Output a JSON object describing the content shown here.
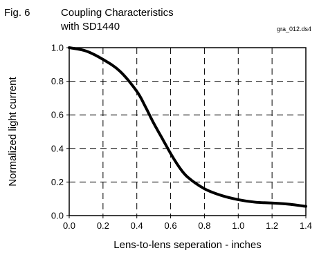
{
  "figure_label": "Fig. 6",
  "file_tag": "gra_012.ds4",
  "chart_data": {
    "type": "line",
    "title": "Coupling Characteristics with SD1440",
    "title_lines": [
      "Coupling Characteristics",
      "with SD1440"
    ],
    "xlabel": "Lens-to-lens seperation - inches",
    "ylabel": "Normalized light current",
    "xlim": [
      0.0,
      1.4
    ],
    "ylim": [
      0.0,
      1.0
    ],
    "x_ticks": [
      "0.0",
      "0.2",
      "0.4",
      "0.6",
      "0.8",
      "1.0",
      "1.2",
      "1.4"
    ],
    "y_ticks": [
      "0.0",
      "0.2",
      "0.4",
      "0.6",
      "0.8",
      "1.0"
    ],
    "grid": "dashed",
    "series": [
      {
        "x": [
          0.0,
          0.1,
          0.2,
          0.3,
          0.4,
          0.45,
          0.5,
          0.55,
          0.6,
          0.65,
          0.7,
          0.8,
          0.9,
          1.0,
          1.1,
          1.2,
          1.3,
          1.4
        ],
        "y": [
          1.0,
          0.98,
          0.93,
          0.86,
          0.74,
          0.65,
          0.55,
          0.46,
          0.37,
          0.29,
          0.23,
          0.16,
          0.12,
          0.095,
          0.08,
          0.075,
          0.068,
          0.055
        ]
      }
    ]
  }
}
